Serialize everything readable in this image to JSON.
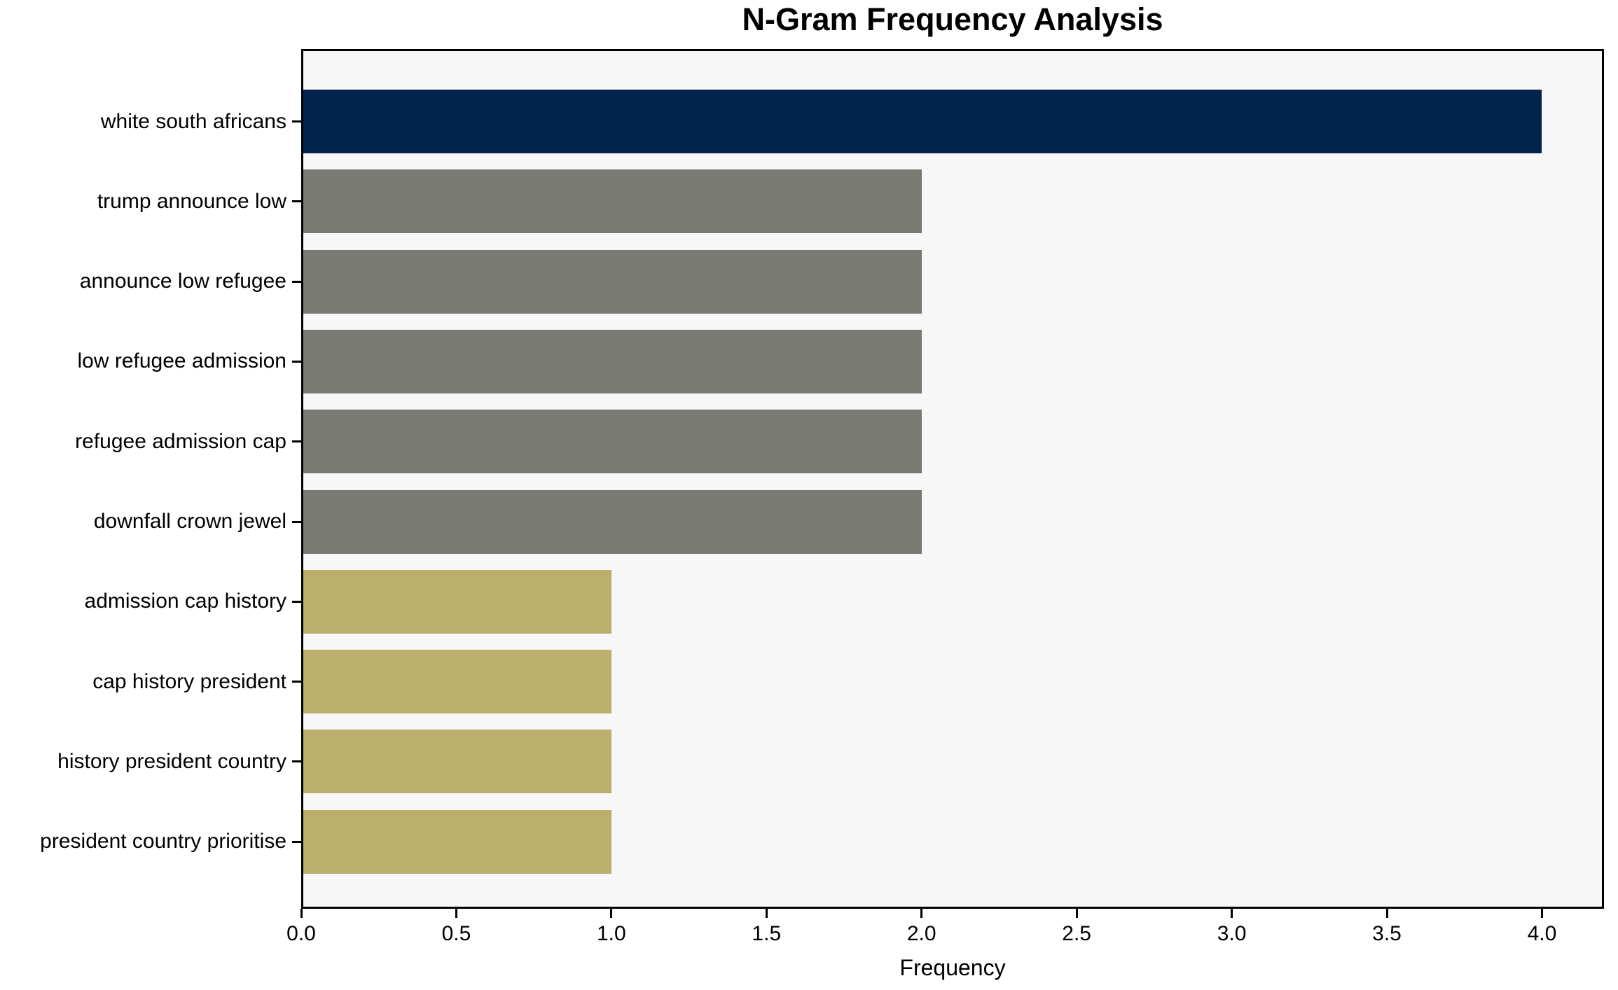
{
  "chart_data": {
    "type": "bar",
    "orientation": "horizontal",
    "title": "N-Gram Frequency Analysis",
    "xlabel": "Frequency",
    "ylabel": "",
    "categories": [
      "white south africans",
      "trump announce low",
      "announce low refugee",
      "low refugee admission",
      "refugee admission cap",
      "downfall crown jewel",
      "admission cap history",
      "cap history president",
      "history president country",
      "president country prioritise"
    ],
    "values": [
      4,
      2,
      2,
      2,
      2,
      2,
      1,
      1,
      1,
      1
    ],
    "bar_colors": [
      "#01234e",
      "#7a7a75",
      "#7a7a75",
      "#7a7a75",
      "#7a7a75",
      "#7a7a75",
      "#bcae6d",
      "#bcae6d",
      "#bcae6d",
      "#bcae6d"
    ],
    "xticks": [
      0.0,
      0.5,
      1.0,
      1.5,
      2.0,
      2.5,
      3.0,
      3.5,
      4.0
    ],
    "xtick_labels": [
      "0.0",
      "0.5",
      "1.0",
      "1.5",
      "2.0",
      "2.5",
      "3.0",
      "3.5",
      "4.0"
    ],
    "xlim": [
      0,
      4.2
    ],
    "grid": false,
    "legend": null,
    "colors": {
      "plot_background": "#f7f7f7",
      "figure_background": "#ffffff",
      "spine": "#000000",
      "text": "#000000"
    }
  }
}
